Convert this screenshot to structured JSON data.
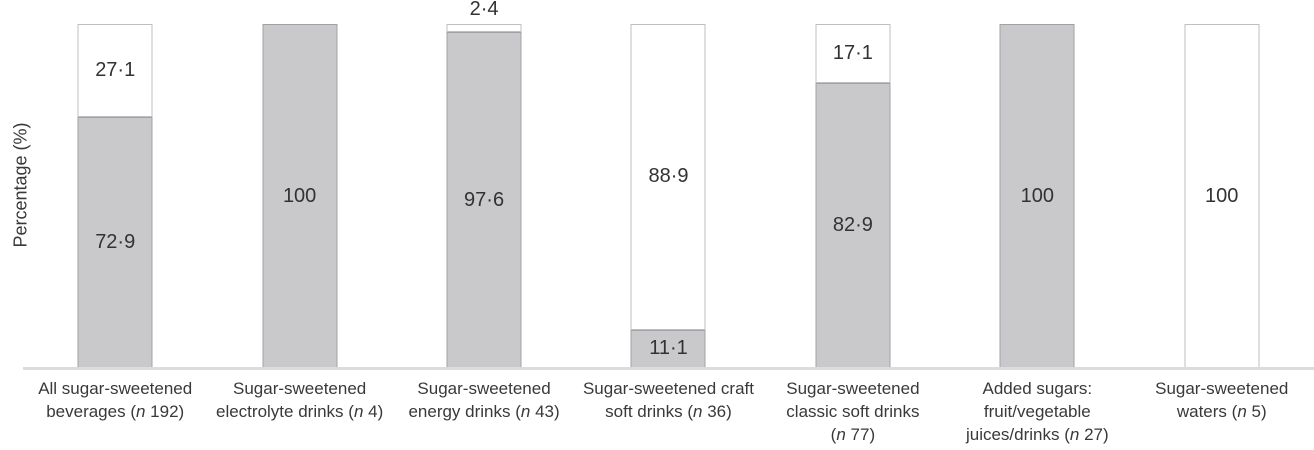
{
  "chart_data": {
    "type": "stacked-bar",
    "title": "",
    "xlabel": "",
    "ylabel": "Percentage (%)",
    "ylim": [
      0,
      100
    ],
    "grid": false,
    "legend": false,
    "decimal_separator": "·",
    "colors": {
      "shaded_fill": "#c9c9cb",
      "shaded_border": "#a2a2a6",
      "unshaded_fill": "#ffffff",
      "unshaded_border": "#bfbfc2",
      "axis_line": "#dcdcdf",
      "value_text": "#323234",
      "label_text": "#39393b"
    },
    "categories": [
      [
        "All sugar-sweetened",
        "beverages (n 192)"
      ],
      [
        "Sugar-sweetened",
        "electrolyte drinks (n 4)"
      ],
      [
        "Sugar-sweetened",
        "energy drinks (n 43)"
      ],
      [
        "Sugar-sweetened craft",
        "soft drinks (n 36)"
      ],
      [
        "Sugar-sweetened",
        "classic soft drinks",
        "(n 77)"
      ],
      [
        "Added sugars:",
        "fruit/vegetable",
        "juices/drinks (n 27)"
      ],
      [
        "Sugar-sweetened",
        "waters (n 5)"
      ]
    ],
    "sample_sizes": [
      192,
      4,
      43,
      36,
      77,
      27,
      5
    ],
    "series": [
      {
        "name": "shaded",
        "position": "bottom",
        "values": [
          72.9,
          100,
          97.6,
          11.1,
          82.9,
          100,
          0
        ],
        "labels": [
          "72·9",
          "100",
          "97·6",
          "11·1",
          "82·9",
          "100",
          ""
        ]
      },
      {
        "name": "unshaded",
        "position": "top",
        "values": [
          27.1,
          0,
          2.4,
          88.9,
          17.1,
          0,
          100
        ],
        "labels": [
          "27·1",
          "",
          "2·4",
          "88·9",
          "17·1",
          "",
          "100"
        ]
      }
    ]
  }
}
